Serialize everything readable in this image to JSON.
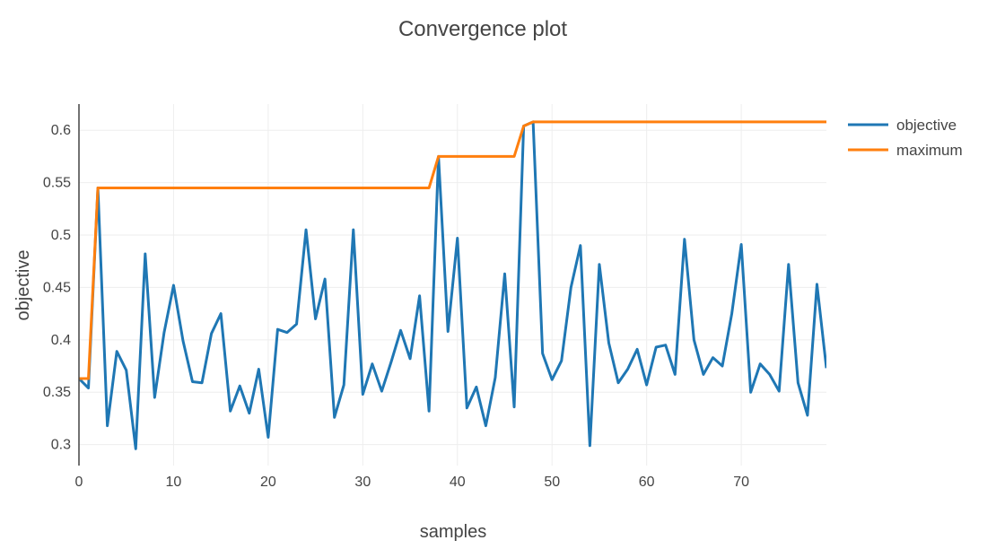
{
  "chart_data": {
    "type": "line",
    "title": "Convergence plot",
    "xlabel": "samples",
    "ylabel": "objective",
    "xlim": [
      0,
      79
    ],
    "ylim": [
      0.28,
      0.625
    ],
    "x_ticks": [
      "0",
      "10",
      "20",
      "30",
      "40",
      "50",
      "60",
      "70"
    ],
    "y_ticks": [
      "0.3",
      "0.35",
      "0.4",
      "0.45",
      "0.5",
      "0.55",
      "0.6"
    ],
    "grid": true,
    "legend_position": "top-right",
    "series": [
      {
        "name": "objective",
        "color": "#1f77b4",
        "values": [
          0.363,
          0.354,
          0.545,
          0.318,
          0.389,
          0.371,
          0.296,
          0.482,
          0.345,
          0.407,
          0.452,
          0.399,
          0.36,
          0.359,
          0.406,
          0.425,
          0.332,
          0.356,
          0.33,
          0.372,
          0.307,
          0.41,
          0.407,
          0.415,
          0.505,
          0.42,
          0.458,
          0.326,
          0.357,
          0.505,
          0.348,
          0.377,
          0.351,
          0.379,
          0.409,
          0.382,
          0.442,
          0.332,
          0.575,
          0.408,
          0.497,
          0.335,
          0.355,
          0.318,
          0.364,
          0.463,
          0.336,
          0.604,
          0.608,
          0.387,
          0.362,
          0.38,
          0.45,
          0.49,
          0.299,
          0.472,
          0.397,
          0.359,
          0.372,
          0.391,
          0.357,
          0.393,
          0.395,
          0.367,
          0.496,
          0.4,
          0.367,
          0.383,
          0.375,
          0.425,
          0.491,
          0.35,
          0.377,
          0.367,
          0.351,
          0.472,
          0.359,
          0.328,
          0.453,
          0.373
        ]
      },
      {
        "name": "maximum",
        "color": "#ff7f0e",
        "values": [
          0.363,
          0.363,
          0.545,
          0.545,
          0.545,
          0.545,
          0.545,
          0.545,
          0.545,
          0.545,
          0.545,
          0.545,
          0.545,
          0.545,
          0.545,
          0.545,
          0.545,
          0.545,
          0.545,
          0.545,
          0.545,
          0.545,
          0.545,
          0.545,
          0.545,
          0.545,
          0.545,
          0.545,
          0.545,
          0.545,
          0.545,
          0.545,
          0.545,
          0.545,
          0.545,
          0.545,
          0.545,
          0.545,
          0.575,
          0.575,
          0.575,
          0.575,
          0.575,
          0.575,
          0.575,
          0.575,
          0.575,
          0.604,
          0.608,
          0.608,
          0.608,
          0.608,
          0.608,
          0.608,
          0.608,
          0.608,
          0.608,
          0.608,
          0.608,
          0.608,
          0.608,
          0.608,
          0.608,
          0.608,
          0.608,
          0.608,
          0.608,
          0.608,
          0.608,
          0.608,
          0.608,
          0.608,
          0.608,
          0.608,
          0.608,
          0.608,
          0.608,
          0.608,
          0.608,
          0.608
        ]
      }
    ]
  }
}
